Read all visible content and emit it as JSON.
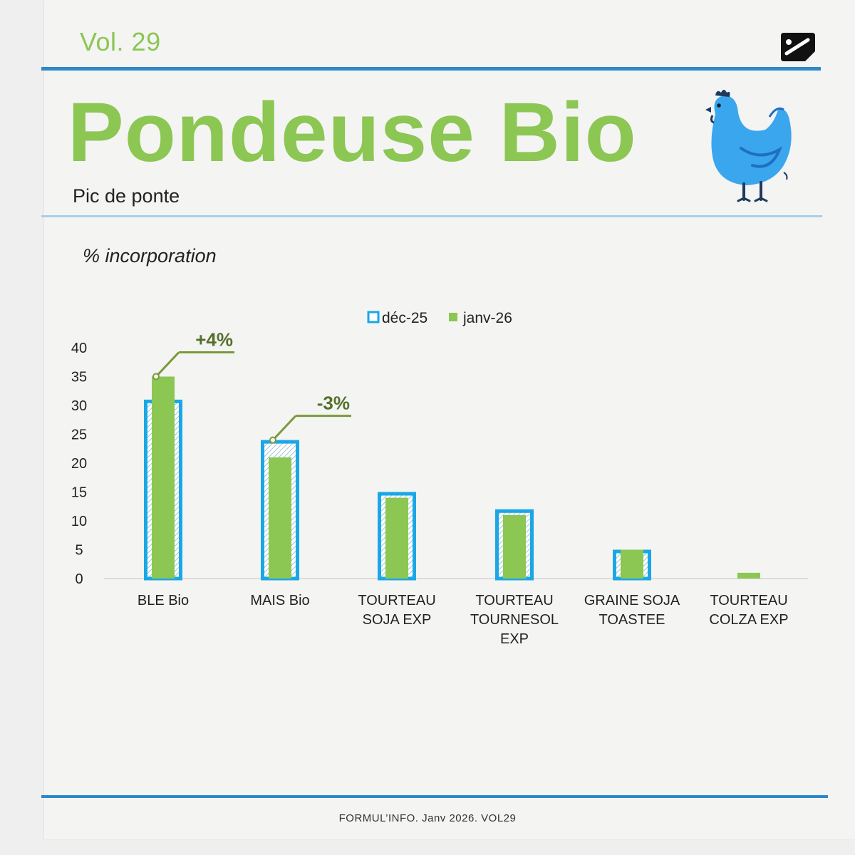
{
  "header": {
    "volume": "Vol. 29",
    "title": "Pondeuse Bio",
    "subtitle": "Pic de ponte",
    "unit_label": "% incorporation"
  },
  "icons": {
    "logo": "brand-logo-icon",
    "illustration": "hen-icon"
  },
  "colors": {
    "accent_green": "#8cc653",
    "accent_blue": "#2e88c9",
    "series_dec": "#1aa7e6",
    "series_jan": "#8cc653",
    "annotation": "#7a9a3a",
    "annotation_text": "#55702a",
    "hen": "#3aa6ee"
  },
  "chart_data": {
    "type": "bar",
    "title": "",
    "xlabel": "",
    "ylabel": "% incorporation",
    "ylim": [
      0,
      40
    ],
    "yticks": [
      0,
      5,
      10,
      15,
      20,
      25,
      30,
      35,
      40
    ],
    "grid": false,
    "legend_position": "top-center",
    "categories": [
      [
        "BLE Bio"
      ],
      [
        "MAIS Bio"
      ],
      [
        "TOURTEAU",
        "SOJA EXP"
      ],
      [
        "TOURTEAU",
        "TOURNESOL",
        "EXP"
      ],
      [
        "GRAINE SOJA",
        "TOASTEE"
      ],
      [
        "TOURTEAU",
        "COLZA EXP"
      ]
    ],
    "series": [
      {
        "name": "déc-25",
        "values": [
          31,
          24,
          15,
          12,
          5,
          0
        ]
      },
      {
        "name": "janv-26",
        "values": [
          35,
          21,
          14,
          11,
          5,
          1
        ]
      }
    ],
    "annotations": [
      {
        "category_index": 0,
        "text": "+4%"
      },
      {
        "category_index": 1,
        "text": "-3%"
      }
    ]
  },
  "footer": {
    "text": "FORMUL’INFO. Janv 2026. VOL29"
  }
}
